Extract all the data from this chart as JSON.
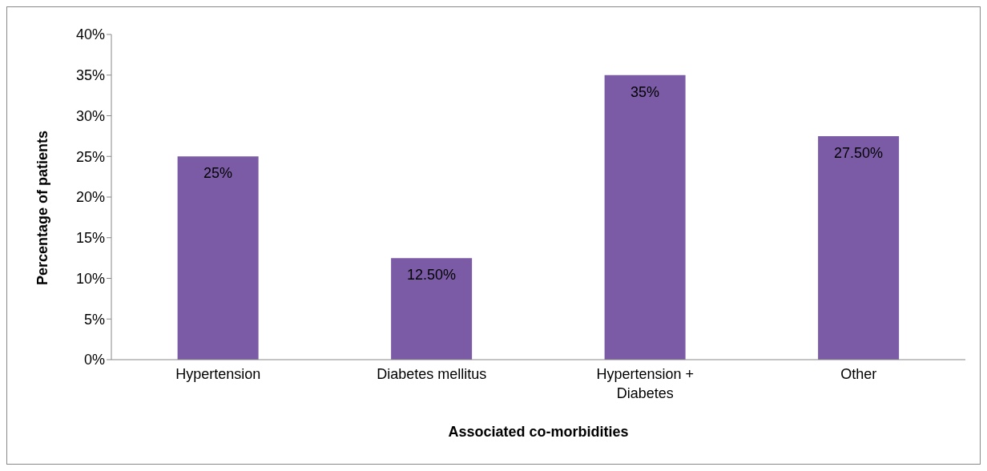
{
  "chart_data": {
    "type": "bar",
    "xlabel": "Associated co-morbidities",
    "ylabel": "Percentage of patients",
    "categories": [
      "Hypertension",
      "Diabetes mellitus",
      "Hypertension + Diabetes",
      "Other"
    ],
    "values": [
      25,
      12.5,
      35,
      27.5
    ],
    "color": "#7b5aa6",
    "value_labels": [
      "25%",
      "12.50%",
      "35%",
      "27.50%"
    ],
    "ylim": [
      0,
      40
    ],
    "yticks": [
      {
        "value": 0,
        "label": "0%"
      },
      {
        "value": 5,
        "label": "5%"
      },
      {
        "value": 10,
        "label": "10%"
      },
      {
        "value": 15,
        "label": "15%"
      },
      {
        "value": 20,
        "label": "20%"
      },
      {
        "value": 25,
        "label": "25%"
      },
      {
        "value": 30,
        "label": "30%"
      },
      {
        "value": 35,
        "label": "35%"
      },
      {
        "value": 40,
        "label": "40%"
      }
    ],
    "grid": false,
    "legend": false
  }
}
